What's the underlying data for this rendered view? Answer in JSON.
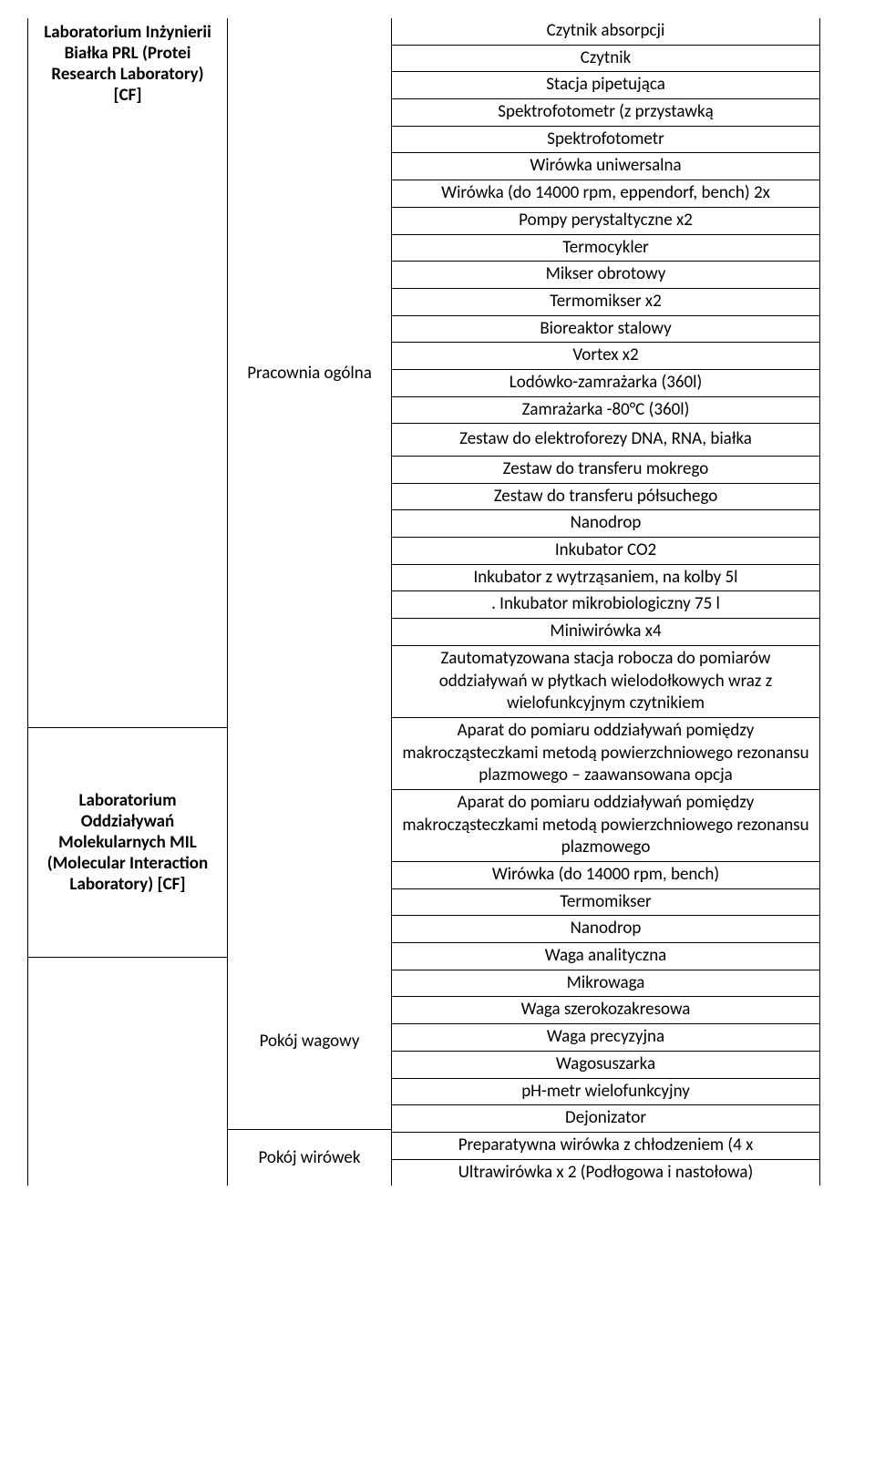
{
  "col1": {
    "lab1": "Laboratorium Inżynierii Białka PRL (Protei Research Laboratory) [CF]",
    "lab2": "Laboratorium Oddziaływań Molekularnych MIL (Molecular Interaction Laboratory) [CF]"
  },
  "col2": {
    "r1": "Pracownia ogólna",
    "r2": "Pokój wagowy",
    "r3": "Pokój wirówek"
  },
  "col3": {
    "items": [
      "Czytnik absorpcji",
      "Czytnik",
      "Stacja pipetująca",
      "Spektrofotometr (z przystawką",
      "Spektrofotometr",
      "Wirówka uniwersalna",
      "Wirówka (do 14000 rpm, eppendorf, bench) 2x",
      "Pompy perystaltyczne x2",
      "Termocykler",
      "Mikser obrotowy",
      "Termomikser x2",
      "Bioreaktor stalowy",
      "Vortex x2",
      "Lodówko-zamrażarka (360l)",
      "Zamrażarka -80°C (360l)",
      "Zestaw do elektroforezy DNA, RNA, białka",
      "Zestaw do transferu mokrego",
      "Zestaw do transferu półsuchego",
      "Nanodrop",
      "Inkubator CO2",
      "Inkubator z wytrząsaniem, na kolby 5l",
      ". Inkubator mikrobiologiczny 75 l",
      "Miniwirówka x4",
      "Zautomatyzowana stacja robocza do pomiarów oddziaływań w płytkach wielodołkowych wraz z wielofunkcyjnym czytnikiem",
      "Aparat do pomiaru oddziaływań pomiędzy makrocząsteczkami metodą powierzchniowego rezonansu plazmowego – zaawansowana opcja",
      "Aparat do pomiaru oddziaływań pomiędzy makrocząsteczkami metodą powierzchniowego rezonansu plazmowego",
      "Wirówka (do 14000 rpm, bench)",
      "Termomikser",
      "Nanodrop",
      "Waga analityczna",
      "Mikrowaga",
      "Waga szerokozakresowa",
      "Waga precyzyjna",
      "Wagosuszarka",
      "pH-metr wielofunkcyjny",
      "Dejonizator",
      "Preparatywna wirówka z chłodzeniem (4 x",
      "Ultrawirówka x 2 (Podłogowa i nastołowa)"
    ]
  }
}
